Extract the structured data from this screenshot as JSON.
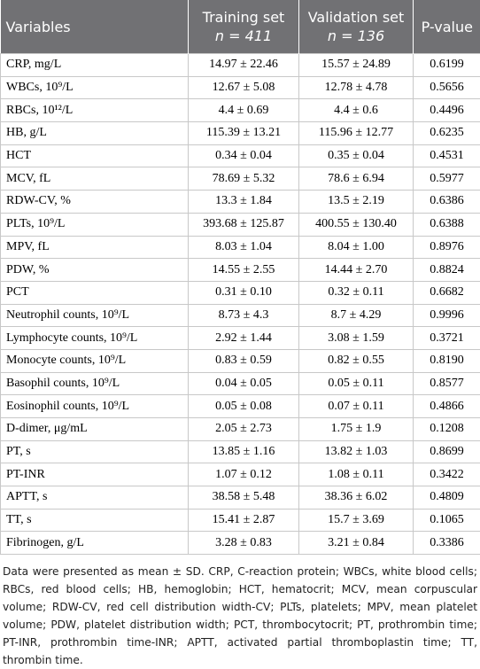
{
  "table": {
    "header": [
      {
        "text": "Variables"
      },
      {
        "text": "Training set",
        "sub": "n = 411"
      },
      {
        "text": "Validation set",
        "sub": "n = 136"
      },
      {
        "text": "P-value"
      }
    ],
    "rows": [
      [
        "CRP, mg/L",
        "14.97 ± 22.46",
        "15.57 ± 24.89",
        "0.6199"
      ],
      [
        "WBCs, 10⁹/L",
        "12.67 ± 5.08",
        "12.78 ± 4.78",
        "0.5656"
      ],
      [
        "RBCs, 10¹²/L",
        "4.4 ± 0.69",
        "4.4 ± 0.6",
        "0.4496"
      ],
      [
        "HB, g/L",
        "115.39 ± 13.21",
        "115.96 ± 12.77",
        "0.6235"
      ],
      [
        "HCT",
        "0.34 ± 0.04",
        "0.35 ± 0.04",
        "0.4531"
      ],
      [
        "MCV, fL",
        "78.69 ± 5.32",
        "78.6 ± 6.94",
        "0.5977"
      ],
      [
        "RDW-CV, %",
        "13.3 ± 1.84",
        "13.5 ± 2.19",
        "0.6386"
      ],
      [
        "PLTs, 10⁹/L",
        "393.68 ± 125.87",
        "400.55 ± 130.40",
        "0.6388"
      ],
      [
        "MPV, fL",
        "8.03 ± 1.04",
        "8.04 ± 1.00",
        "0.8976"
      ],
      [
        "PDW, %",
        "14.55 ± 2.55",
        "14.44 ± 2.70",
        "0.8824"
      ],
      [
        "PCT",
        "0.31 ± 0.10",
        "0.32 ± 0.11",
        "0.6682"
      ],
      [
        "Neutrophil counts, 10⁹/L",
        "8.73 ± 4.3",
        "8.7 ± 4.29",
        "0.9996"
      ],
      [
        "Lymphocyte counts, 10⁹/L",
        "2.92 ± 1.44",
        "3.08 ± 1.59",
        "0.3721"
      ],
      [
        "Monocyte counts, 10⁹/L",
        "0.83 ± 0.59",
        "0.82 ± 0.55",
        "0.8190"
      ],
      [
        "Basophil counts, 10⁹/L",
        "0.04 ± 0.05",
        "0.05 ± 0.11",
        "0.8577"
      ],
      [
        "Eosinophil counts, 10⁹/L",
        "0.05 ± 0.08",
        "0.07 ± 0.11",
        "0.4866"
      ],
      [
        "D-dimer, μg/mL",
        "2.05 ± 2.73",
        "1.75 ± 1.9",
        "0.1208"
      ],
      [
        "PT, s",
        "13.85 ± 1.16",
        "13.82 ± 1.03",
        "0.8699"
      ],
      [
        "PT-INR",
        "1.07 ± 0.12",
        "1.08 ± 0.11",
        "0.3422"
      ],
      [
        "APTT, s",
        "38.58 ± 5.48",
        "38.36 ± 6.02",
        "0.4809"
      ],
      [
        "TT, s",
        "15.41 ± 2.87",
        "15.7 ± 3.69",
        "0.1065"
      ],
      [
        "Fibrinogen, g/L",
        "3.28 ± 0.83",
        "3.21 ± 0.84",
        "0.3386"
      ]
    ]
  },
  "footnote": "Data were presented as mean ± SD. CRP, C-reaction protein; WBCs, white blood cells; RBCs, red blood cells; HB, hemoglobin; HCT, hematocrit; MCV, mean corpuscular volume; RDW-CV, red cell distribution width-CV; PLTs, platelets; MPV, mean platelet volume; PDW, platelet distribution width; PCT, thrombocytocrit; PT, prothrombin time; PT-INR, prothrombin time-INR; APTT, activated partial thromboplastin time; TT, thrombin time."
}
